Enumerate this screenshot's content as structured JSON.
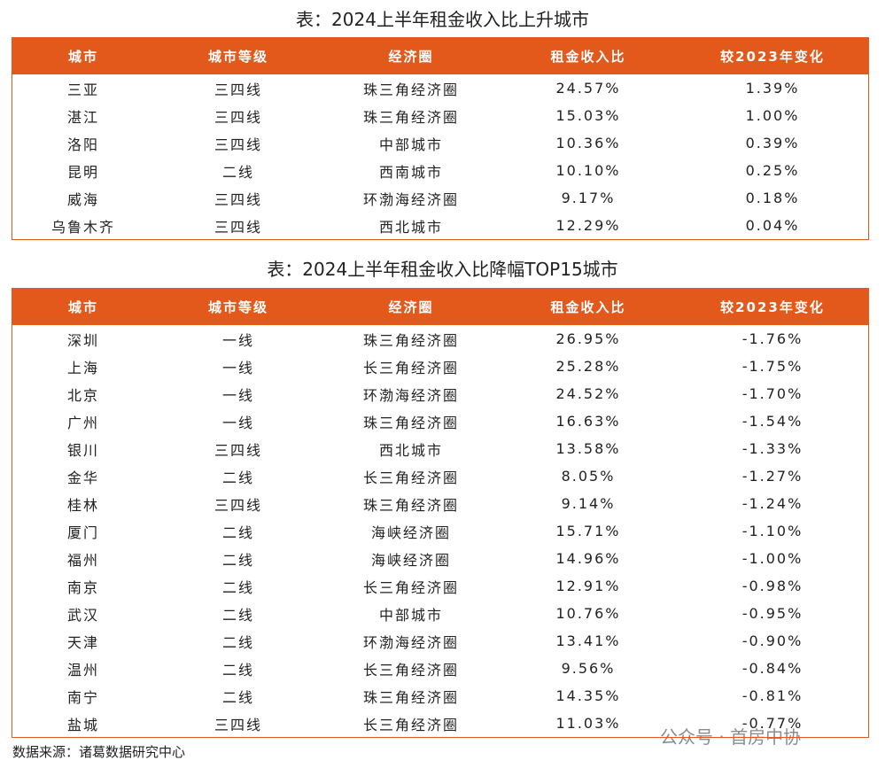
{
  "tables": [
    {
      "title": "表：2024上半年租金收入比上升城市",
      "headers": [
        "城市",
        "城市等级",
        "经济圈",
        "租金收入比",
        "较2023年变化"
      ],
      "rows": [
        [
          "三亚",
          "三四线",
          "珠三角经济圈",
          "24.57%",
          "1.39%"
        ],
        [
          "湛江",
          "三四线",
          "珠三角经济圈",
          "15.03%",
          "1.00%"
        ],
        [
          "洛阳",
          "三四线",
          "中部城市",
          "10.36%",
          "0.39%"
        ],
        [
          "昆明",
          "二线",
          "西南城市",
          "10.10%",
          "0.25%"
        ],
        [
          "威海",
          "三四线",
          "环渤海经济圈",
          "9.17%",
          "0.18%"
        ],
        [
          "乌鲁木齐",
          "三四线",
          "西北城市",
          "12.29%",
          "0.04%"
        ]
      ]
    },
    {
      "title": "表：2024上半年租金收入比降幅TOP15城市",
      "headers": [
        "城市",
        "城市等级",
        "经济圈",
        "租金收入比",
        "较2023年变化"
      ],
      "rows": [
        [
          "深圳",
          "一线",
          "珠三角经济圈",
          "26.95%",
          "-1.76%"
        ],
        [
          "上海",
          "一线",
          "长三角经济圈",
          "25.28%",
          "-1.75%"
        ],
        [
          "北京",
          "一线",
          "环渤海经济圈",
          "24.52%",
          "-1.70%"
        ],
        [
          "广州",
          "一线",
          "珠三角经济圈",
          "16.63%",
          "-1.54%"
        ],
        [
          "银川",
          "三四线",
          "西北城市",
          "13.58%",
          "-1.33%"
        ],
        [
          "金华",
          "二线",
          "长三角经济圈",
          "8.05%",
          "-1.27%"
        ],
        [
          "桂林",
          "三四线",
          "珠三角经济圈",
          "9.14%",
          "-1.24%"
        ],
        [
          "厦门",
          "二线",
          "海峡经济圈",
          "15.71%",
          "-1.10%"
        ],
        [
          "福州",
          "二线",
          "海峡经济圈",
          "14.96%",
          "-1.00%"
        ],
        [
          "南京",
          "二线",
          "长三角经济圈",
          "12.91%",
          "-0.98%"
        ],
        [
          "武汉",
          "二线",
          "中部城市",
          "10.76%",
          "-0.95%"
        ],
        [
          "天津",
          "二线",
          "环渤海经济圈",
          "13.41%",
          "-0.90%"
        ],
        [
          "温州",
          "二线",
          "长三角经济圈",
          "9.56%",
          "-0.84%"
        ],
        [
          "南宁",
          "二线",
          "珠三角经济圈",
          "14.35%",
          "-0.81%"
        ],
        [
          "盐城",
          "三四线",
          "长三角经济圈",
          "11.03%",
          "-0.77%"
        ]
      ]
    }
  ],
  "source": "数据来源：诸葛数据研究中心",
  "watermark": "公众号 · 首房中协"
}
